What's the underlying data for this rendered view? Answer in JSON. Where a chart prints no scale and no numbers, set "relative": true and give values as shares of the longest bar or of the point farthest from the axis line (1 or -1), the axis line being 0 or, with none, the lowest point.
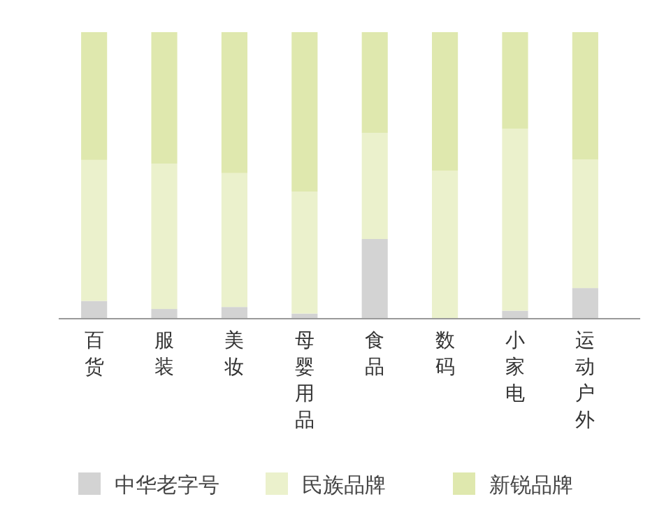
{
  "chart_data": {
    "type": "bar",
    "relative": true,
    "stacked": true,
    "legend": "bottom",
    "categories": [
      "百货",
      "服装",
      "美妆",
      "母婴用品",
      "食品",
      "数码",
      "小家电",
      "运动户外"
    ],
    "series": [
      {
        "name": "中华老字号",
        "color": "#d3d3d3",
        "values": [
          0.062,
          0.034,
          0.041,
          0.018,
          0.278,
          0,
          0.028,
          0.107
        ]
      },
      {
        "name": "民族品牌",
        "color": "#ebf1cc",
        "values": [
          0.492,
          0.507,
          0.467,
          0.425,
          0.37,
          0.516,
          0.635,
          0.448
        ]
      },
      {
        "name": "新锐品牌",
        "color": "#dfe8ae",
        "values": [
          0.446,
          0.459,
          0.492,
          0.557,
          0.352,
          0.484,
          0.337,
          0.445
        ]
      }
    ]
  }
}
